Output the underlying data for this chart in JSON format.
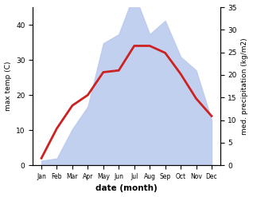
{
  "months": [
    "Jan",
    "Feb",
    "Mar",
    "Apr",
    "May",
    "Jun",
    "Jul",
    "Aug",
    "Sep",
    "Oct",
    "Nov",
    "Dec"
  ],
  "temp": [
    2,
    10.5,
    17,
    20,
    26.5,
    27,
    34,
    34,
    32,
    26,
    19,
    14
  ],
  "precip": [
    1,
    1.5,
    8,
    13,
    27,
    29,
    38,
    29,
    32,
    24,
    21,
    10
  ],
  "temp_color": "#cc2222",
  "precip_fill_color": "#b8c8ee",
  "ylabel_left": "max temp (C)",
  "ylabel_right": "med. precipitation (kg/m2)",
  "xlabel": "date (month)",
  "ylim_left": [
    0,
    45
  ],
  "ylim_right": [
    0,
    35
  ],
  "yticks_left": [
    0,
    10,
    20,
    30,
    40
  ],
  "yticks_right": [
    0,
    5,
    10,
    15,
    20,
    25,
    30,
    35
  ],
  "background_color": "#ffffff",
  "linewidth": 2.0
}
